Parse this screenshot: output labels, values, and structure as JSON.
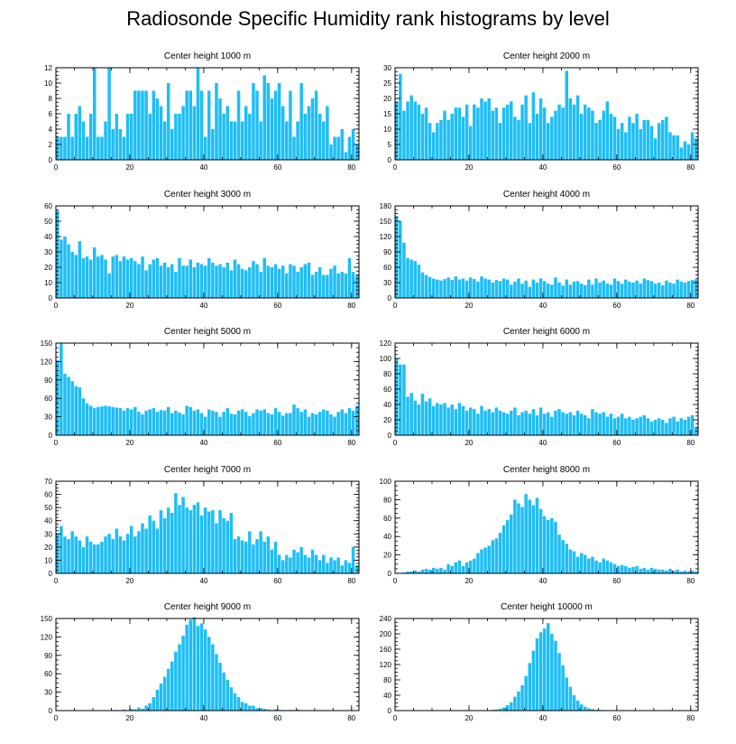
{
  "figure": {
    "title": "Radiosonde Specific Humidity rank histograms by level",
    "bar_color": "#1EBEF5"
  },
  "chart_data": [
    {
      "type": "bar",
      "title": "Center height 1000 m",
      "x": {
        "min": 0,
        "max": 82,
        "ticks": [
          0,
          20,
          40,
          60,
          80
        ]
      },
      "y": {
        "min": 0,
        "max": 12,
        "ticks": [
          0,
          2,
          4,
          6,
          8,
          10,
          12
        ]
      },
      "values": [
        3,
        3,
        3,
        6,
        3,
        6,
        7,
        5,
        3,
        6,
        12,
        3,
        3,
        5,
        12,
        4,
        6,
        4,
        3,
        6,
        6,
        9,
        9,
        9,
        9,
        6,
        9,
        8,
        7,
        5,
        10,
        4,
        6,
        6,
        7,
        9,
        9,
        7,
        12,
        9,
        3,
        9,
        4,
        10,
        8,
        6,
        7,
        5,
        5,
        9,
        5,
        7,
        6,
        10,
        9,
        5,
        11,
        10,
        8,
        9,
        10,
        7,
        5,
        9,
        3,
        5,
        10,
        6,
        7,
        8,
        9,
        6,
        5,
        7,
        2,
        3,
        3,
        4,
        1,
        3,
        4,
        2
      ]
    },
    {
      "type": "bar",
      "title": "Center height 2000 m",
      "x": {
        "min": 0,
        "max": 82,
        "ticks": [
          0,
          20,
          40,
          60,
          80
        ]
      },
      "y": {
        "min": 0,
        "max": 30,
        "ticks": [
          0,
          5,
          10,
          15,
          20,
          25,
          30
        ]
      },
      "values": [
        19,
        28,
        16,
        19,
        21,
        19,
        18,
        15,
        17,
        12,
        9,
        12,
        13,
        16,
        13,
        15,
        17,
        17,
        14,
        18,
        11,
        18,
        17,
        20,
        19,
        20,
        16,
        17,
        12,
        17,
        18,
        19,
        14,
        13,
        18,
        21,
        12,
        22,
        15,
        20,
        17,
        12,
        14,
        16,
        18,
        17,
        29,
        20,
        18,
        21,
        15,
        18,
        17,
        16,
        12,
        13,
        16,
        19,
        15,
        14,
        10,
        12,
        9,
        14,
        12,
        15,
        10,
        13,
        13,
        11,
        7,
        12,
        13,
        14,
        9,
        8,
        8,
        4,
        6,
        5,
        9,
        7
      ]
    },
    {
      "type": "bar",
      "title": "Center height 3000 m",
      "x": {
        "min": 0,
        "max": 82,
        "ticks": [
          0,
          20,
          40,
          60,
          80
        ]
      },
      "y": {
        "min": 0,
        "max": 60,
        "ticks": [
          0,
          10,
          20,
          30,
          40,
          50,
          60
        ]
      },
      "values": [
        57,
        38,
        40,
        35,
        30,
        28,
        37,
        26,
        27,
        25,
        33,
        27,
        28,
        25,
        16,
        27,
        28,
        24,
        27,
        25,
        26,
        24,
        22,
        27,
        18,
        22,
        25,
        26,
        21,
        23,
        20,
        22,
        17,
        26,
        21,
        21,
        25,
        20,
        23,
        22,
        21,
        26,
        23,
        21,
        22,
        20,
        23,
        18,
        25,
        22,
        19,
        18,
        20,
        24,
        22,
        17,
        26,
        21,
        20,
        22,
        19,
        21,
        16,
        22,
        21,
        17,
        20,
        22,
        23,
        15,
        17,
        20,
        15,
        15,
        19,
        21,
        16,
        17,
        16,
        26,
        17,
        15
      ]
    },
    {
      "type": "bar",
      "title": "Center height 4000 m",
      "x": {
        "min": 0,
        "max": 82,
        "ticks": [
          0,
          20,
          40,
          60,
          80
        ]
      },
      "y": {
        "min": 0,
        "max": 180,
        "ticks": [
          0,
          30,
          60,
          90,
          120,
          150,
          180
        ]
      },
      "values": [
        160,
        150,
        108,
        78,
        75,
        72,
        65,
        50,
        45,
        41,
        38,
        36,
        34,
        37,
        40,
        35,
        42,
        36,
        38,
        34,
        40,
        37,
        32,
        42,
        38,
        36,
        30,
        35,
        33,
        38,
        36,
        26,
        32,
        38,
        28,
        34,
        22,
        36,
        30,
        38,
        33,
        28,
        26,
        40,
        30,
        24,
        36,
        26,
        32,
        33,
        28,
        25,
        36,
        26,
        38,
        30,
        34,
        28,
        26,
        38,
        33,
        28,
        36,
        32,
        30,
        34,
        28,
        38,
        35,
        33,
        28,
        30,
        25,
        34,
        30,
        28,
        36,
        32,
        30,
        33,
        35,
        36
      ]
    },
    {
      "type": "bar",
      "title": "Center height 5000 m",
      "x": {
        "min": 0,
        "max": 82,
        "ticks": [
          0,
          20,
          40,
          60,
          80
        ]
      },
      "y": {
        "min": 0,
        "max": 150,
        "ticks": [
          0,
          30,
          60,
          90,
          120,
          150
        ]
      },
      "values": [
        122,
        150,
        100,
        95,
        88,
        80,
        78,
        60,
        52,
        48,
        44,
        46,
        47,
        48,
        47,
        46,
        45,
        44,
        40,
        44,
        42,
        46,
        38,
        34,
        40,
        42,
        44,
        38,
        41,
        40,
        46,
        36,
        40,
        37,
        34,
        48,
        46,
        40,
        42,
        36,
        30,
        42,
        40,
        38,
        30,
        38,
        44,
        35,
        34,
        40,
        42,
        38,
        31,
        36,
        42,
        40,
        42,
        36,
        34,
        44,
        38,
        32,
        36,
        36,
        50,
        44,
        38,
        42,
        30,
        36,
        34,
        38,
        42,
        40,
        34,
        30,
        38,
        42,
        36,
        44,
        40,
        48
      ]
    },
    {
      "type": "bar",
      "title": "Center height 6000 m",
      "x": {
        "min": 0,
        "max": 82,
        "ticks": [
          0,
          20,
          40,
          60,
          80
        ]
      },
      "y": {
        "min": 0,
        "max": 120,
        "ticks": [
          0,
          20,
          40,
          60,
          80,
          100,
          120
        ]
      },
      "values": [
        100,
        92,
        92,
        50,
        55,
        45,
        40,
        54,
        44,
        48,
        38,
        42,
        40,
        42,
        36,
        40,
        34,
        42,
        38,
        32,
        36,
        34,
        28,
        38,
        32,
        34,
        30,
        36,
        32,
        30,
        28,
        32,
        36,
        26,
        30,
        32,
        28,
        34,
        26,
        36,
        28,
        30,
        24,
        32,
        34,
        30,
        28,
        30,
        26,
        32,
        28,
        26,
        22,
        34,
        30,
        28,
        30,
        24,
        28,
        22,
        24,
        28,
        22,
        24,
        20,
        22,
        24,
        26,
        22,
        18,
        20,
        22,
        20,
        16,
        22,
        24,
        18,
        22,
        20,
        24,
        26,
        10
      ]
    },
    {
      "type": "bar",
      "title": "Center height 7000 m",
      "x": {
        "min": 0,
        "max": 82,
        "ticks": [
          0,
          20,
          40,
          60,
          80
        ]
      },
      "y": {
        "min": 0,
        "max": 70,
        "ticks": [
          0,
          10,
          20,
          30,
          40,
          50,
          60,
          70
        ]
      },
      "values": [
        30,
        36,
        28,
        26,
        32,
        28,
        25,
        20,
        28,
        24,
        22,
        22,
        24,
        28,
        30,
        26,
        34,
        28,
        25,
        30,
        36,
        28,
        32,
        38,
        34,
        44,
        40,
        34,
        48,
        42,
        50,
        46,
        61,
        52,
        58,
        50,
        48,
        52,
        54,
        44,
        50,
        47,
        48,
        38,
        48,
        42,
        40,
        46,
        26,
        28,
        25,
        24,
        32,
        22,
        26,
        32,
        24,
        28,
        18,
        24,
        14,
        10,
        14,
        12,
        18,
        16,
        20,
        14,
        12,
        18,
        14,
        10,
        14,
        8,
        12,
        10,
        12,
        6,
        10,
        8,
        20,
        6
      ]
    },
    {
      "type": "bar",
      "title": "Center height 8000 m",
      "x": {
        "min": 0,
        "max": 82,
        "ticks": [
          0,
          20,
          40,
          60,
          80
        ]
      },
      "y": {
        "min": 0,
        "max": 100,
        "ticks": [
          0,
          20,
          40,
          60,
          80,
          100
        ]
      },
      "values": [
        0,
        0,
        1,
        2,
        2,
        3,
        2,
        4,
        5,
        4,
        6,
        5,
        6,
        4,
        10,
        8,
        12,
        14,
        8,
        12,
        14,
        16,
        22,
        26,
        28,
        30,
        36,
        38,
        44,
        52,
        58,
        64,
        80,
        76,
        72,
        86,
        80,
        74,
        82,
        70,
        62,
        58,
        60,
        56,
        42,
        36,
        32,
        26,
        24,
        18,
        22,
        20,
        16,
        18,
        14,
        12,
        16,
        14,
        12,
        10,
        8,
        9,
        8,
        6,
        7,
        8,
        5,
        6,
        4,
        6,
        5,
        4,
        4,
        3,
        5,
        3,
        4,
        2,
        3,
        2,
        3,
        2
      ]
    },
    {
      "type": "bar",
      "title": "Center height 9000 m",
      "x": {
        "min": 0,
        "max": 82,
        "ticks": [
          0,
          20,
          40,
          60,
          80
        ]
      },
      "y": {
        "min": 0,
        "max": 150,
        "ticks": [
          0,
          30,
          60,
          90,
          120,
          150
        ]
      },
      "values": [
        0,
        0,
        0,
        0,
        0,
        0,
        0,
        0,
        0,
        0,
        0,
        0,
        0,
        0,
        0,
        0,
        1,
        0,
        2,
        1,
        3,
        2,
        5,
        3,
        8,
        12,
        22,
        34,
        44,
        55,
        68,
        80,
        96,
        108,
        122,
        140,
        148,
        152,
        138,
        142,
        132,
        120,
        108,
        92,
        78,
        62,
        50,
        38,
        28,
        22,
        14,
        12,
        8,
        8,
        4,
        4,
        3,
        2,
        1,
        2,
        1,
        1,
        0,
        1,
        0,
        2,
        0,
        0,
        0,
        0,
        0,
        1,
        0,
        0,
        0,
        0,
        0,
        0,
        0,
        0,
        0,
        0
      ]
    },
    {
      "type": "bar",
      "title": "Center height 10000 m",
      "x": {
        "min": 0,
        "max": 82,
        "ticks": [
          0,
          20,
          40,
          60,
          80
        ]
      },
      "y": {
        "min": 0,
        "max": 240,
        "ticks": [
          0,
          40,
          80,
          120,
          160,
          200,
          240
        ]
      },
      "values": [
        0,
        0,
        0,
        0,
        0,
        0,
        0,
        0,
        0,
        0,
        0,
        0,
        0,
        0,
        0,
        0,
        0,
        0,
        0,
        0,
        0,
        0,
        0,
        0,
        0,
        1,
        2,
        3,
        5,
        8,
        14,
        22,
        36,
        50,
        66,
        90,
        124,
        156,
        188,
        204,
        214,
        228,
        200,
        182,
        150,
        118,
        86,
        62,
        40,
        26,
        16,
        10,
        6,
        4,
        2,
        2,
        1,
        1,
        0,
        0,
        0,
        0,
        0,
        0,
        0,
        0,
        0,
        0,
        0,
        0,
        0,
        0,
        0,
        0,
        0,
        0,
        0,
        0,
        0,
        0,
        0,
        0
      ]
    }
  ]
}
